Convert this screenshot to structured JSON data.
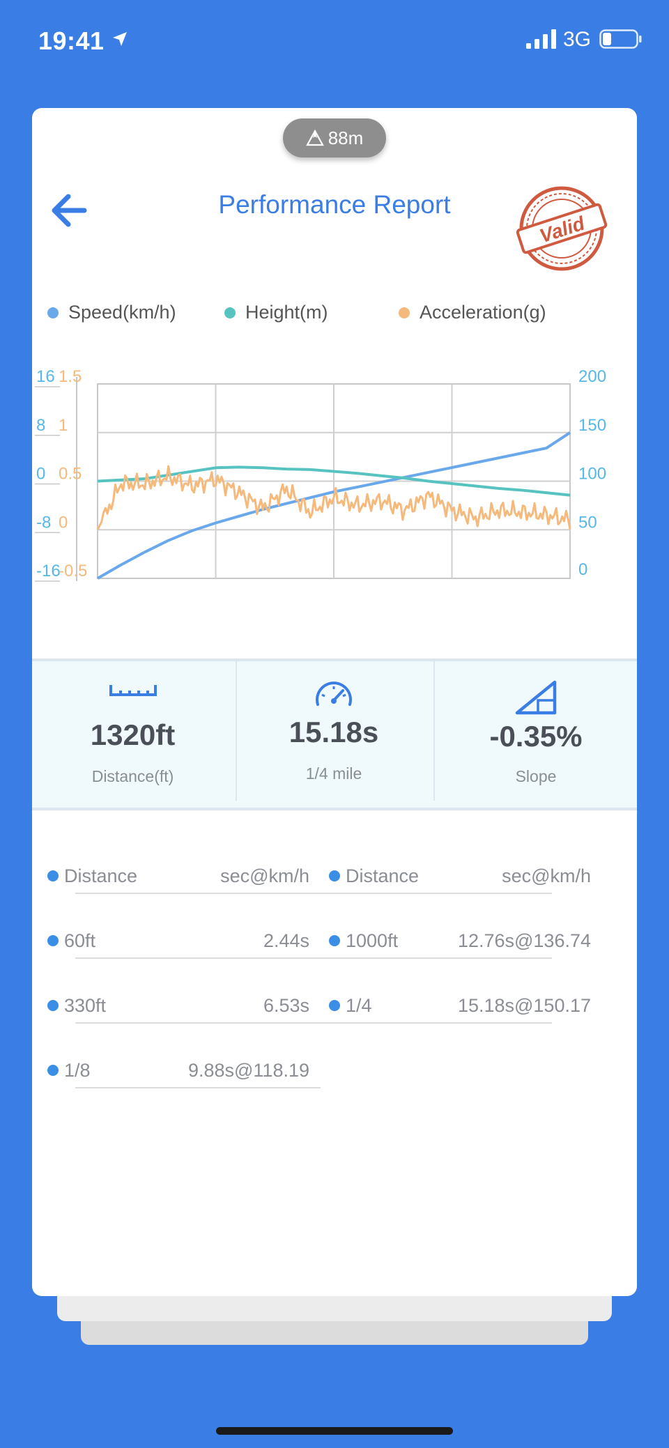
{
  "status_bar": {
    "time": "19:41",
    "network": "3G"
  },
  "header": {
    "altitude": "88m",
    "title": "Performance Report",
    "stamp_text": "Valid"
  },
  "legend": [
    {
      "label": "Speed(km/h)",
      "color": "#6aa8ec"
    },
    {
      "label": "Height(m)",
      "color": "#56c3c1"
    },
    {
      "label": "Acceleration(g)",
      "color": "#f5b97c"
    }
  ],
  "chart_data": {
    "type": "line",
    "height_axis": {
      "ticks": [
        "16",
        "8",
        "0",
        "-8",
        "-16"
      ],
      "range": [
        -16,
        16
      ]
    },
    "accel_axis": {
      "ticks": [
        "1.5",
        "1",
        "0.5",
        "0",
        "-0.5"
      ],
      "range": [
        -0.5,
        1.5
      ]
    },
    "speed_axis": {
      "ticks": [
        "200",
        "150",
        "100",
        "50",
        "0"
      ],
      "range": [
        0,
        200
      ]
    },
    "x": [
      0,
      0.05,
      0.1,
      0.15,
      0.2,
      0.25,
      0.3,
      0.35,
      0.4,
      0.45,
      0.5,
      0.55,
      0.6,
      0.65,
      0.7,
      0.75,
      0.8,
      0.85,
      0.9,
      0.95,
      1.0
    ],
    "series": [
      {
        "name": "Speed(km/h)",
        "axis": "speed",
        "color": "#6aa8ec",
        "values": [
          0,
          14,
          27,
          39,
          49,
          57,
          64,
          71,
          77,
          83,
          89,
          94,
          99,
          104,
          109,
          114,
          119,
          124,
          129,
          134,
          150
        ]
      },
      {
        "name": "Height(m)",
        "axis": "height",
        "color": "#56c3c1",
        "values": [
          0.0,
          0.2,
          0.4,
          1.0,
          1.6,
          2.2,
          2.3,
          2.2,
          2.0,
          1.9,
          1.6,
          1.3,
          0.9,
          0.5,
          0.0,
          -0.4,
          -0.8,
          -1.2,
          -1.5,
          -1.9,
          -2.3
        ]
      },
      {
        "name": "Acceleration(g)",
        "axis": "accel",
        "color": "#f5b97c",
        "values": [
          0.0,
          0.48,
          0.47,
          0.55,
          0.45,
          0.52,
          0.38,
          0.22,
          0.42,
          0.18,
          0.33,
          0.25,
          0.3,
          0.2,
          0.35,
          0.2,
          0.12,
          0.2,
          0.18,
          0.15,
          0.1
        ]
      }
    ]
  },
  "stats": [
    {
      "value": "1320ft",
      "label": "Distance(ft)"
    },
    {
      "value": "15.18s",
      "label": "1/4 mile"
    },
    {
      "value": "-0.35%",
      "label": "Slope"
    }
  ],
  "splits": {
    "header": {
      "left_name": "Distance",
      "left_value": "sec@km/h",
      "right_name": "Distance",
      "right_value": "sec@km/h"
    },
    "left": [
      {
        "name": "60ft",
        "value": "2.44s"
      },
      {
        "name": "330ft",
        "value": "6.53s"
      },
      {
        "name": "1/8",
        "value": "9.88s@118.19"
      }
    ],
    "right": [
      {
        "name": "1000ft",
        "value": "12.76s@136.74"
      },
      {
        "name": "1/4",
        "value": "15.18s@150.17"
      }
    ]
  }
}
